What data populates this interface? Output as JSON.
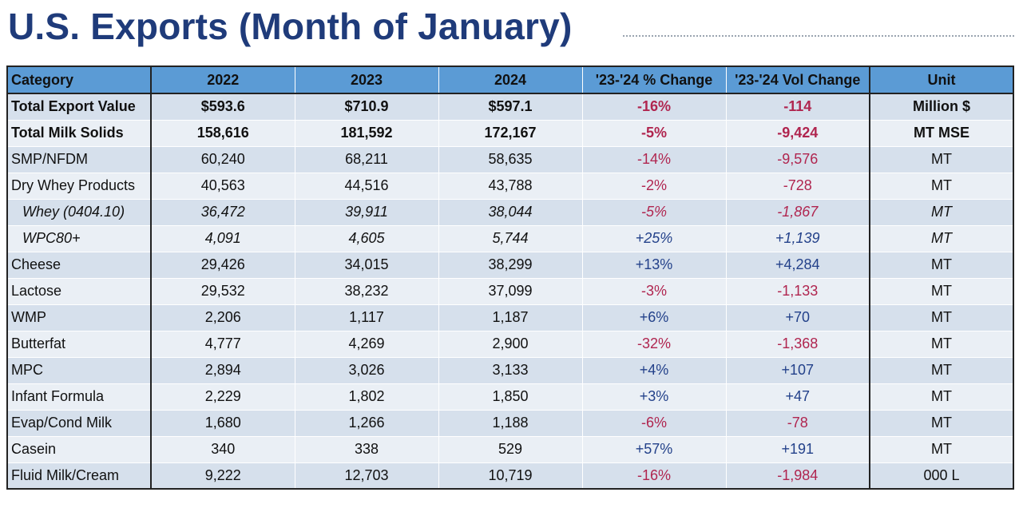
{
  "title": "U.S. Exports (Month of January)",
  "colors": {
    "title": "#1f3b7a",
    "header": "#5b9bd5",
    "negative": "#b0254f",
    "positive": "#23418a"
  },
  "table": {
    "headers": [
      "Category",
      "2022",
      "2023",
      "2024",
      "'23-'24 % Change",
      "'23-'24 Vol Change",
      "Unit"
    ],
    "rows": [
      {
        "cells": [
          "Total Export Value",
          "$593.6",
          "$710.9",
          "$597.1",
          "-16%",
          "-114",
          "Million $"
        ],
        "style": "bold"
      },
      {
        "cells": [
          "Total Milk Solids",
          "158,616",
          "181,592",
          "172,167",
          "-5%",
          "-9,424",
          "MT MSE"
        ],
        "style": "bold"
      },
      {
        "cells": [
          "SMP/NFDM",
          "60,240",
          "68,211",
          "58,635",
          "-14%",
          "-9,576",
          "MT"
        ],
        "style": ""
      },
      {
        "cells": [
          "Dry Whey Products",
          "40,563",
          "44,516",
          "43,788",
          "-2%",
          "-728",
          "MT"
        ],
        "style": ""
      },
      {
        "cells": [
          "Whey (0404.10)",
          "36,472",
          "39,911",
          "38,044",
          "-5%",
          "-1,867",
          "MT"
        ],
        "style": "italic"
      },
      {
        "cells": [
          "WPC80+",
          "4,091",
          "4,605",
          "5,744",
          "+25%",
          "+1,139",
          "MT"
        ],
        "style": "italic"
      },
      {
        "cells": [
          "Cheese",
          "29,426",
          "34,015",
          "38,299",
          "+13%",
          "+4,284",
          "MT"
        ],
        "style": ""
      },
      {
        "cells": [
          "Lactose",
          "29,532",
          "38,232",
          "37,099",
          "-3%",
          "-1,133",
          "MT"
        ],
        "style": ""
      },
      {
        "cells": [
          "WMP",
          "2,206",
          "1,117",
          "1,187",
          "+6%",
          "+70",
          "MT"
        ],
        "style": ""
      },
      {
        "cells": [
          "Butterfat",
          "4,777",
          "4,269",
          "2,900",
          "-32%",
          "-1,368",
          "MT"
        ],
        "style": ""
      },
      {
        "cells": [
          "MPC",
          "2,894",
          "3,026",
          "3,133",
          "+4%",
          "+107",
          "MT"
        ],
        "style": ""
      },
      {
        "cells": [
          "Infant Formula",
          "2,229",
          "1,802",
          "1,850",
          "+3%",
          "+47",
          "MT"
        ],
        "style": ""
      },
      {
        "cells": [
          "Evap/Cond Milk",
          "1,680",
          "1,266",
          "1,188",
          "-6%",
          "-78",
          "MT"
        ],
        "style": ""
      },
      {
        "cells": [
          "Casein",
          "340",
          "338",
          "529",
          "+57%",
          "+191",
          "MT"
        ],
        "style": ""
      },
      {
        "cells": [
          "Fluid Milk/Cream",
          "9,222",
          "12,703",
          "10,719",
          "-16%",
          "-1,984",
          "000 L"
        ],
        "style": ""
      }
    ]
  }
}
